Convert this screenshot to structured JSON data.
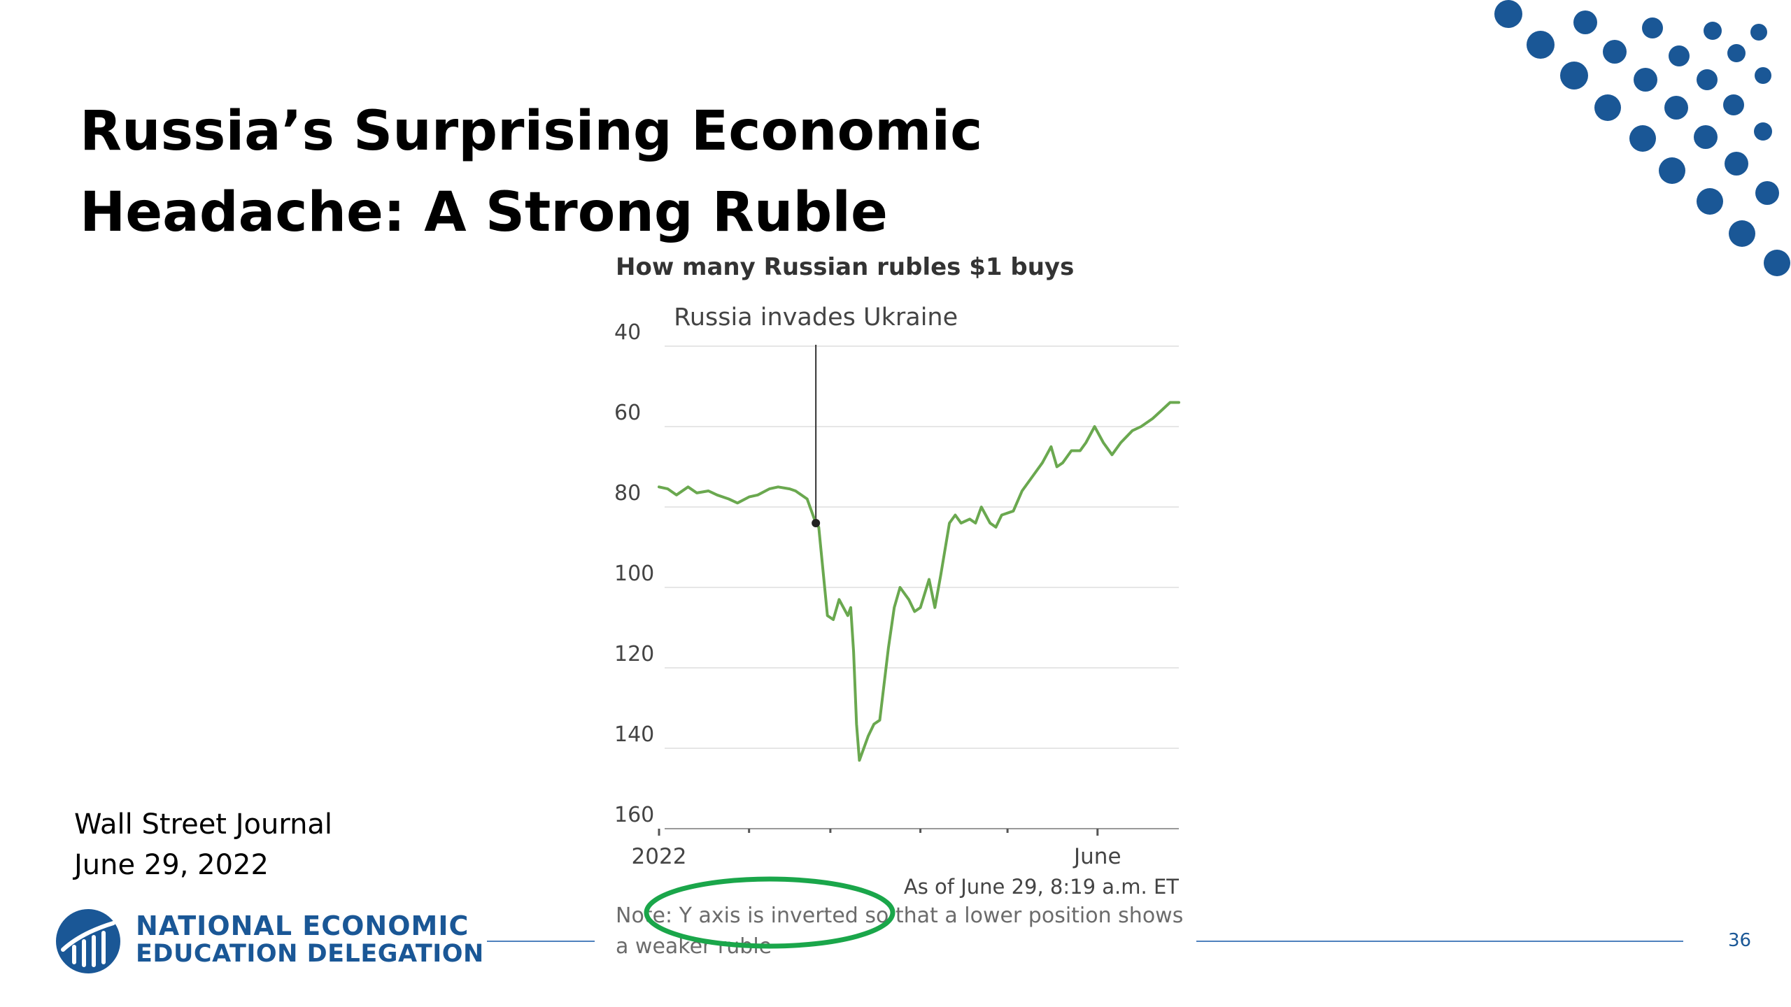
{
  "slide": {
    "title_line1": "Russia’s Surprising Economic",
    "title_line2": "Headache: A Strong Ruble",
    "source_line1": "Wall Street Journal",
    "source_line2": "June 29, 2022",
    "logo_line1": "NATIONAL ECONOMIC",
    "logo_line2": "EDUCATION DELEGATION",
    "page_number": "36",
    "accent_color": "#1a5796",
    "highlight_color": "#1aa64a"
  },
  "chart_data": {
    "type": "line",
    "title": "How many Russian rubles $1 buys",
    "y_inverted": true,
    "ylim": [
      40,
      160
    ],
    "yticks": [
      40,
      60,
      80,
      100,
      120,
      140,
      160
    ],
    "x_tick_labels": [
      "2022",
      "June"
    ],
    "xlim": [
      "2022-01-01",
      "2022-06-29"
    ],
    "annotation": {
      "label": "Russia invades Ukraine",
      "date": "2022-02-24",
      "value": 84
    },
    "timestamp": "As of June 29, 8:19 a.m. ET",
    "note": "Note: Y axis is inverted so that a lower position shows a weaker ruble",
    "grid": true,
    "line_color": "#6aa84f",
    "series": [
      {
        "values": [
          [
            "2022-01-01",
            75
          ],
          [
            "2022-01-04",
            75.5
          ],
          [
            "2022-01-07",
            77
          ],
          [
            "2022-01-11",
            75
          ],
          [
            "2022-01-14",
            76.5
          ],
          [
            "2022-01-18",
            76
          ],
          [
            "2022-01-21",
            77
          ],
          [
            "2022-01-25",
            78
          ],
          [
            "2022-01-28",
            79
          ],
          [
            "2022-02-01",
            77.5
          ],
          [
            "2022-02-04",
            77
          ],
          [
            "2022-02-08",
            75.5
          ],
          [
            "2022-02-11",
            75
          ],
          [
            "2022-02-15",
            75.5
          ],
          [
            "2022-02-17",
            76
          ],
          [
            "2022-02-21",
            78
          ],
          [
            "2022-02-24",
            84
          ],
          [
            "2022-02-25",
            85
          ],
          [
            "2022-02-28",
            107
          ],
          [
            "2022-03-02",
            108
          ],
          [
            "2022-03-04",
            103
          ],
          [
            "2022-03-07",
            107
          ],
          [
            "2022-03-08",
            105
          ],
          [
            "2022-03-09",
            116
          ],
          [
            "2022-03-10",
            134
          ],
          [
            "2022-03-11",
            143
          ],
          [
            "2022-03-14",
            137
          ],
          [
            "2022-03-16",
            134
          ],
          [
            "2022-03-18",
            133
          ],
          [
            "2022-03-21",
            115
          ],
          [
            "2022-03-23",
            105
          ],
          [
            "2022-03-25",
            100
          ],
          [
            "2022-03-28",
            103
          ],
          [
            "2022-03-30",
            106
          ],
          [
            "2022-04-01",
            105
          ],
          [
            "2022-04-04",
            98
          ],
          [
            "2022-04-06",
            105
          ],
          [
            "2022-04-08",
            97
          ],
          [
            "2022-04-11",
            84
          ],
          [
            "2022-04-13",
            82
          ],
          [
            "2022-04-15",
            84
          ],
          [
            "2022-04-18",
            83
          ],
          [
            "2022-04-20",
            84
          ],
          [
            "2022-04-22",
            80
          ],
          [
            "2022-04-25",
            84
          ],
          [
            "2022-04-27",
            85
          ],
          [
            "2022-04-29",
            82
          ],
          [
            "2022-05-03",
            81
          ],
          [
            "2022-05-06",
            76
          ],
          [
            "2022-05-10",
            72
          ],
          [
            "2022-05-13",
            69
          ],
          [
            "2022-05-16",
            65
          ],
          [
            "2022-05-18",
            70
          ],
          [
            "2022-05-20",
            69
          ],
          [
            "2022-05-23",
            66
          ],
          [
            "2022-05-26",
            66
          ],
          [
            "2022-05-28",
            64
          ],
          [
            "2022-05-31",
            60
          ],
          [
            "2022-06-03",
            64
          ],
          [
            "2022-06-06",
            67
          ],
          [
            "2022-06-09",
            64
          ],
          [
            "2022-06-13",
            61
          ],
          [
            "2022-06-16",
            60
          ],
          [
            "2022-06-20",
            58
          ],
          [
            "2022-06-23",
            56
          ],
          [
            "2022-06-26",
            54
          ],
          [
            "2022-06-29",
            54
          ]
        ]
      }
    ]
  }
}
